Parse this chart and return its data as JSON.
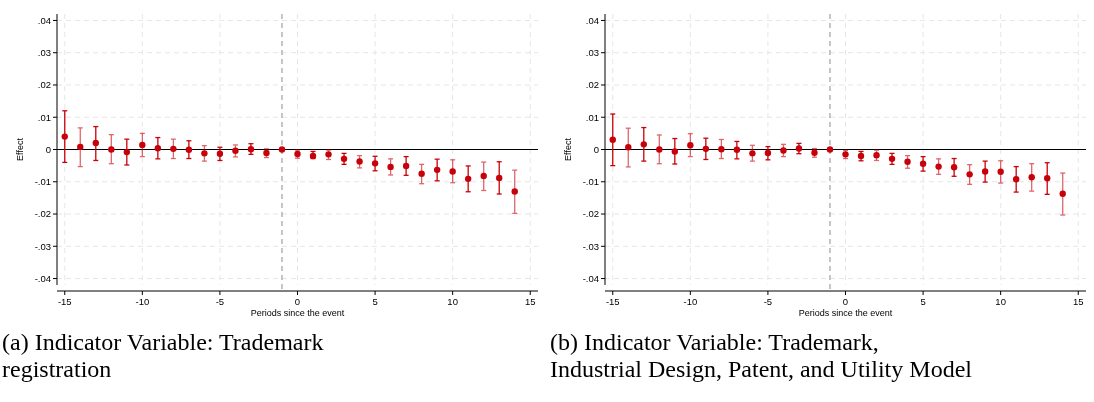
{
  "chart_data": [
    {
      "type": "scatter",
      "title": "(a) Indicator Variable: Trademark registration",
      "xlabel": "Periods since the event",
      "ylabel": "Effect",
      "xlim": [
        -15.5,
        15.5
      ],
      "ylim": [
        -0.042,
        0.042
      ],
      "xticks": [
        -15,
        -10,
        -5,
        0,
        5,
        10,
        15
      ],
      "yticks": [
        {
          "value": -0.04,
          "label": "-.04"
        },
        {
          "value": -0.03,
          "label": "-.03"
        },
        {
          "value": -0.02,
          "label": "-.02"
        },
        {
          "value": -0.01,
          "label": "-.01"
        },
        0,
        {
          "value": 0.01,
          "label": ".01"
        },
        {
          "value": 0.02,
          "label": ".02"
        },
        {
          "value": 0.03,
          "label": ".03"
        },
        {
          "value": 0.04,
          "label": ".04"
        }
      ],
      "grid": true,
      "marker": "circle",
      "ref_lines": [
        {
          "axis": "x",
          "value": -1,
          "color": "#8c8c8c",
          "line_style": "dashed"
        },
        {
          "axis": "y",
          "value": 0,
          "color": "#000000",
          "line_style": "solid"
        }
      ],
      "series": [
        {
          "color": "#c8000a",
          "x": [
            -15,
            -14,
            -13,
            -12,
            -11,
            -10,
            -9,
            -8,
            -7,
            -6,
            -5,
            -4,
            -3,
            -2,
            -1,
            0,
            1,
            2,
            3,
            4,
            5,
            6,
            7,
            8,
            9,
            10,
            11,
            12,
            13,
            14
          ],
          "values": [
            0.004,
            0.0008,
            0.002,
            0,
            -0.0008,
            0.0014,
            0.0004,
            0.0002,
            -0.0001,
            -0.0012,
            -0.0013,
            -0.0004,
            0.0001,
            -0.0011,
            0,
            -0.0014,
            -0.002,
            -0.0015,
            -0.0029,
            -0.0037,
            -0.0043,
            -0.0054,
            -0.0051,
            -0.0075,
            -0.0063,
            -0.0068,
            -0.0091,
            -0.0082,
            -0.0088,
            -0.013
          ],
          "errors": [
            [
              -0.004,
              0.012
            ],
            [
              -0.0053,
              0.0067
            ],
            [
              -0.0034,
              0.0071
            ],
            [
              -0.0044,
              0.0046
            ],
            [
              -0.0048,
              0.0032
            ],
            [
              -0.0022,
              0.005
            ],
            [
              -0.0029,
              0.0037
            ],
            [
              -0.0028,
              0.0032
            ],
            [
              -0.0028,
              0.0027
            ],
            [
              -0.0036,
              0.0012
            ],
            [
              -0.0034,
              0.0007
            ],
            [
              -0.0023,
              0.0014
            ],
            [
              -0.0015,
              0.0018
            ],
            [
              -0.0025,
              0.0002
            ],
            null,
            [
              -0.0027,
              -0.0002
            ],
            [
              -0.0028,
              -0.0006
            ],
            [
              -0.0031,
              -0.0002
            ],
            [
              -0.0046,
              -0.0012
            ],
            [
              -0.0057,
              -0.0019
            ],
            [
              -0.0066,
              -0.0021
            ],
            [
              -0.0079,
              -0.0029
            ],
            [
              -0.008,
              -0.0022
            ],
            [
              -0.0106,
              -0.0046
            ],
            [
              -0.0097,
              -0.003
            ],
            [
              -0.0103,
              -0.0032
            ],
            [
              -0.0131,
              -0.0051
            ],
            [
              -0.0127,
              -0.0039
            ],
            [
              -0.0138,
              -0.0038
            ],
            [
              -0.0198,
              -0.0064
            ]
          ]
        }
      ]
    },
    {
      "type": "scatter",
      "title": "(b) Indicator Variable: Trademark, Industrial Design, Patent, and Utility Model",
      "xlabel": "Periods since the event",
      "ylabel": "Effect",
      "xlim": [
        -15.5,
        15.5
      ],
      "ylim": [
        -0.042,
        0.042
      ],
      "xticks": [
        -15,
        -10,
        -5,
        0,
        5,
        10,
        15
      ],
      "yticks": [
        {
          "value": -0.04,
          "label": "-.04"
        },
        {
          "value": -0.03,
          "label": "-.03"
        },
        {
          "value": -0.02,
          "label": "-.02"
        },
        {
          "value": -0.01,
          "label": "-.01"
        },
        0,
        {
          "value": 0.01,
          "label": ".01"
        },
        {
          "value": 0.02,
          "label": ".02"
        },
        {
          "value": 0.03,
          "label": ".03"
        },
        {
          "value": 0.04,
          "label": ".04"
        }
      ],
      "grid": true,
      "marker": "circle",
      "ref_lines": [
        {
          "axis": "x",
          "value": -1,
          "color": "#8c8c8c",
          "line_style": "dashed"
        },
        {
          "axis": "y",
          "value": 0,
          "color": "#000000",
          "line_style": "solid"
        }
      ],
      "series": [
        {
          "color": "#c8000a",
          "x": [
            -15,
            -14,
            -13,
            -12,
            -11,
            -10,
            -9,
            -8,
            -7,
            -6,
            -5,
            -4,
            -3,
            -2,
            -1,
            0,
            1,
            2,
            3,
            4,
            5,
            6,
            7,
            8,
            9,
            10,
            11,
            12,
            13,
            14
          ],
          "values": [
            0.003,
            0.0007,
            0.0016,
            0,
            -0.0006,
            0.0013,
            0.0002,
            0.0001,
            -0.0001,
            -0.0012,
            -0.0011,
            -0.0003,
            0.0003,
            -0.001,
            0,
            -0.0015,
            -0.002,
            -0.0018,
            -0.0029,
            -0.0038,
            -0.0044,
            -0.0053,
            -0.0055,
            -0.0077,
            -0.0068,
            -0.0069,
            -0.0092,
            -0.0086,
            -0.0089,
            -0.0137
          ],
          "errors": [
            [
              -0.005,
              0.011
            ],
            [
              -0.0054,
              0.0066
            ],
            [
              -0.0036,
              0.0068
            ],
            [
              -0.0044,
              0.0045
            ],
            [
              -0.0045,
              0.0034
            ],
            [
              -0.0022,
              0.0049
            ],
            [
              -0.0031,
              0.0035
            ],
            [
              -0.0028,
              0.0031
            ],
            [
              -0.0029,
              0.0025
            ],
            [
              -0.0036,
              0.0013
            ],
            [
              -0.0032,
              0.0009
            ],
            [
              -0.0022,
              0.0016
            ],
            [
              -0.0013,
              0.0019
            ],
            [
              -0.0024,
              0.0003
            ],
            null,
            [
              -0.0028,
              -0.0003
            ],
            [
              -0.0035,
              -0.0006
            ],
            [
              -0.0034,
              -0.0002
            ],
            [
              -0.0046,
              -0.0012
            ],
            [
              -0.0058,
              -0.0019
            ],
            [
              -0.0067,
              -0.0022
            ],
            [
              -0.0077,
              -0.0029
            ],
            [
              -0.0083,
              -0.0028
            ],
            [
              -0.0108,
              -0.0047
            ],
            [
              -0.0101,
              -0.0036
            ],
            [
              -0.0104,
              -0.0035
            ],
            [
              -0.0132,
              -0.0053
            ],
            [
              -0.0129,
              -0.0044
            ],
            [
              -0.0139,
              -0.0041
            ],
            [
              -0.0203,
              -0.0073
            ]
          ]
        }
      ]
    }
  ]
}
